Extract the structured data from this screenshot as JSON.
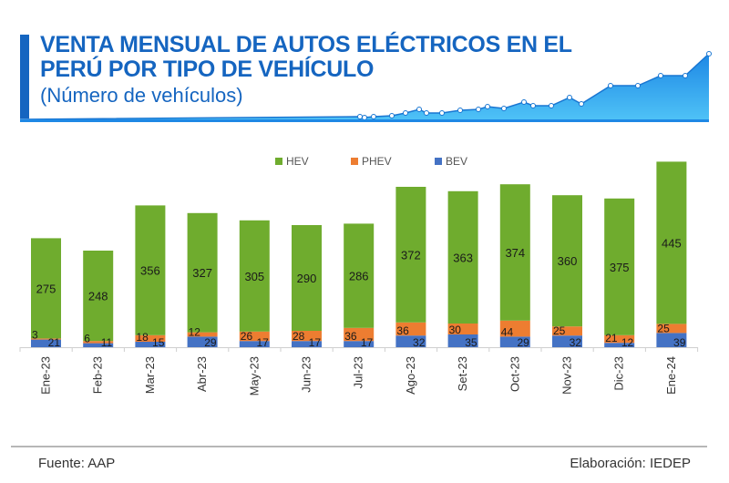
{
  "header": {
    "title_line1": "VENTA MENSUAL DE AUTOS ELÉCTRICOS EN EL",
    "title_line2": "PERÚ POR TIPO DE VEHÍCULO",
    "subtitle": "(Número de vehículos)"
  },
  "colors": {
    "title": "#1565c0",
    "HEV": "#6fac2e",
    "PHEV": "#ed7d31",
    "BEV": "#4472c4",
    "deco_fill": "#29a3e0"
  },
  "chart_data": {
    "type": "bar",
    "stacked": true,
    "title": "VENTA MENSUAL DE AUTOS ELÉCTRICOS EN EL PERÚ POR TIPO DE VEHÍCULO",
    "subtitle": "(Número de vehículos)",
    "xlabel": "",
    "ylabel": "",
    "categories": [
      "Ene-23",
      "Feb-23",
      "Mar-23",
      "Abr-23",
      "May-23",
      "Jun-23",
      "Jul-23",
      "Ago-23",
      "Set-23",
      "Oct-23",
      "Nov-23",
      "Dic-23",
      "Ene-24"
    ],
    "series": [
      {
        "name": "BEV",
        "values": [
          21,
          11,
          15,
          29,
          17,
          17,
          17,
          32,
          35,
          29,
          32,
          12,
          39
        ]
      },
      {
        "name": "PHEV",
        "values": [
          3,
          6,
          18,
          12,
          26,
          28,
          36,
          36,
          30,
          44,
          25,
          21,
          25
        ]
      },
      {
        "name": "HEV",
        "values": [
          275,
          248,
          356,
          327,
          305,
          290,
          286,
          372,
          363,
          374,
          360,
          375,
          445
        ]
      }
    ],
    "legend": [
      "HEV",
      "PHEV",
      "BEV"
    ],
    "legend_position": "top-center",
    "grid": false,
    "ylim": [
      0,
      520
    ]
  },
  "footer": {
    "source": "Fuente: AAP",
    "credit": "Elaboración: IEDEP"
  }
}
